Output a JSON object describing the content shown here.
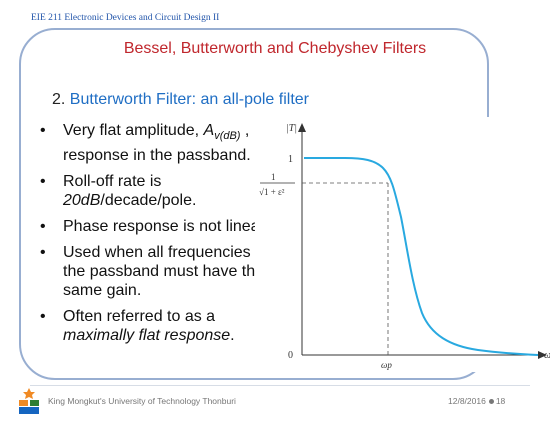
{
  "header": {
    "course": "EIE 211 Electronic Devices and Circuit Design II"
  },
  "slide": {
    "title": "Bessel, Butterworth and Chebyshev Filters",
    "section_number": "2.",
    "section_title": "Butterworth Filter: an all-pole filter"
  },
  "bullets": {
    "b1_pre": "Very flat amplitude, ",
    "b1_var": "A",
    "b1_sub": "v(dB)",
    "b1_post": " , response in the passband.",
    "b2_pre": "Roll-off rate is ",
    "b2_italic": "20dB",
    "b2_post": "/decade/pole.",
    "b3": "Phase response is not linear.",
    "b4": "Used when all frequencies in the passband must have the same gain.",
    "b5_pre": "Often referred to as a ",
    "b5_italic": "maximally flat response",
    "b5_post": "."
  },
  "graph": {
    "y_axis_label": "|T|",
    "tick_one": "1",
    "tick_frac_num": "1",
    "tick_frac_den": "√1 + ε²",
    "tick_zero": "0",
    "x_tick": "ωp",
    "x_axis_label": "ω"
  },
  "footer": {
    "university": "King Mongkut's University of Technology Thonburi",
    "date": "12/8/2016",
    "page": "18"
  },
  "colors": {
    "curve": "#29a9e0",
    "title": "#c0272d",
    "accent": "#1f6ec4",
    "frame": "#98aed1"
  }
}
